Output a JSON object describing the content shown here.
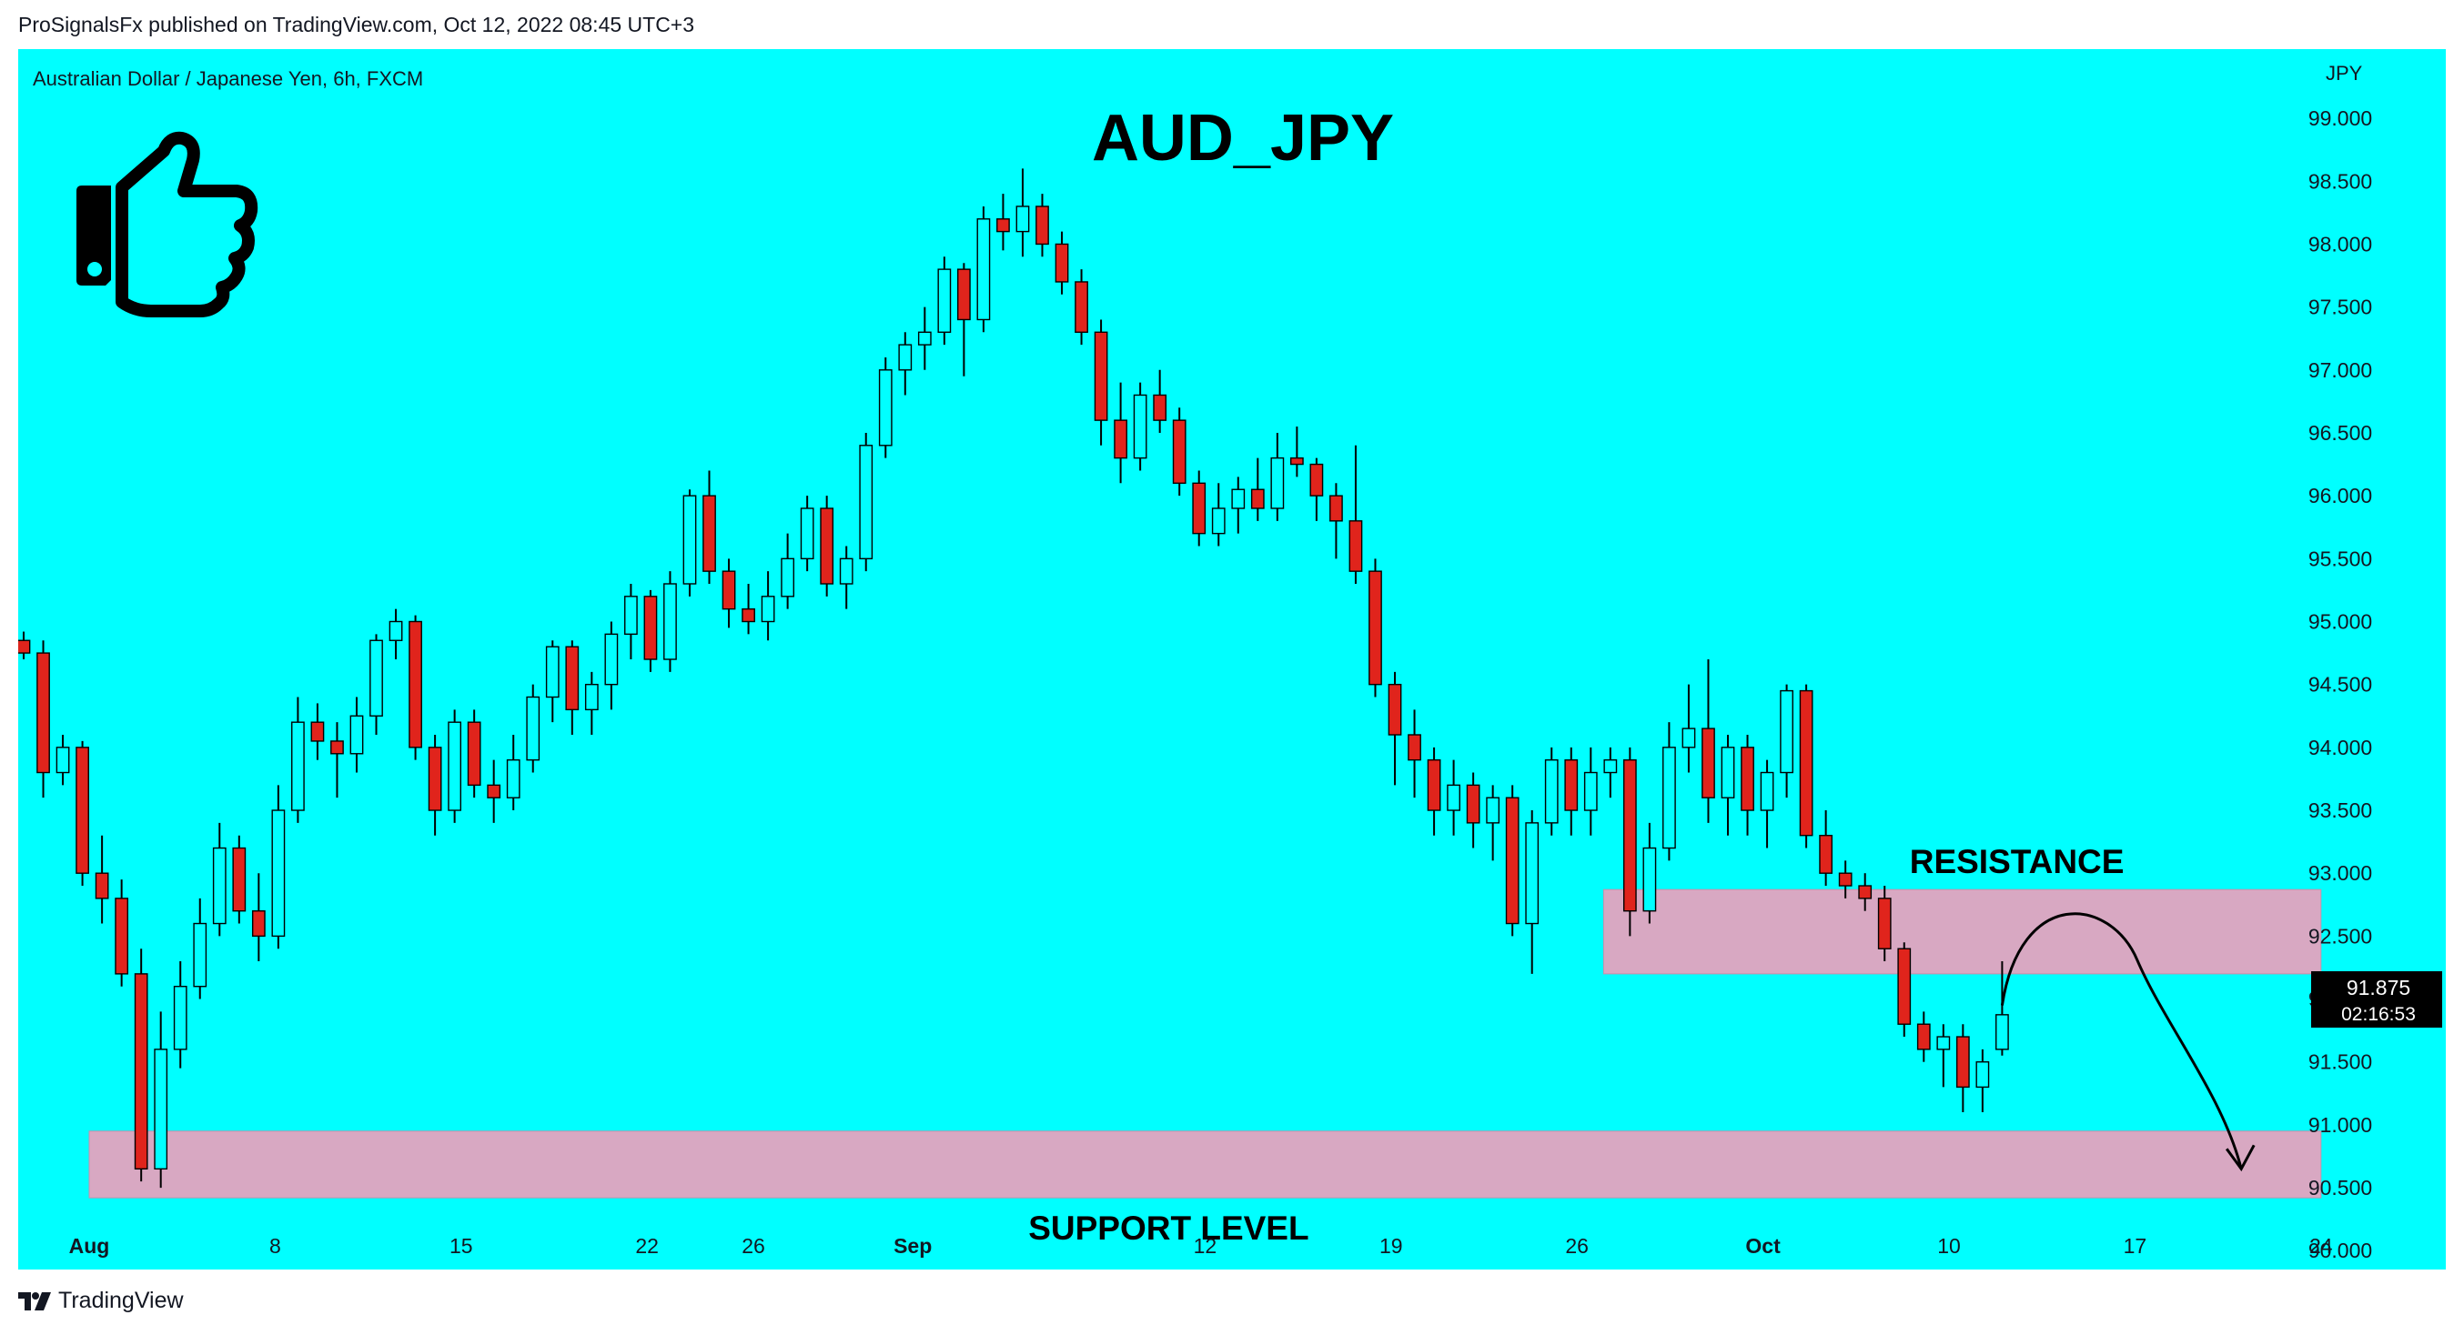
{
  "publisher_line": "ProSignalsFx published on TradingView.com, Oct 12, 2022 08:45 UTC+3",
  "footer_brand": "TradingView",
  "colors": {
    "background": "#00ffff",
    "zone": "#d8a8c2",
    "bull": "#00ffff",
    "bear": "#e0241c",
    "wick": "#000000"
  },
  "chart_data": {
    "type": "candlestick",
    "title": "AUD_JPY",
    "symbol_info": "Australian Dollar / Japanese Yen, 6h, FXCM",
    "currency_label": "JPY",
    "x_ticks": [
      {
        "label": "Aug",
        "bold": true,
        "date": "2022-08-01"
      },
      {
        "label": "8",
        "bold": false,
        "date": "2022-08-08"
      },
      {
        "label": "15",
        "bold": false,
        "date": "2022-08-15"
      },
      {
        "label": "22",
        "bold": false,
        "date": "2022-08-22"
      },
      {
        "label": "26",
        "bold": false,
        "date": "2022-08-26"
      },
      {
        "label": "Sep",
        "bold": true,
        "date": "2022-09-01"
      },
      {
        "label": "12",
        "bold": false,
        "date": "2022-09-12"
      },
      {
        "label": "19",
        "bold": false,
        "date": "2022-09-19"
      },
      {
        "label": "26",
        "bold": false,
        "date": "2022-09-26"
      },
      {
        "label": "Oct",
        "bold": true,
        "date": "2022-10-03"
      },
      {
        "label": "10",
        "bold": false,
        "date": "2022-10-10"
      },
      {
        "label": "17",
        "bold": false,
        "date": "2022-10-17"
      },
      {
        "label": "24",
        "bold": false,
        "date": "2022-10-24"
      }
    ],
    "y_ticks": [
      "99.000",
      "98.500",
      "98.000",
      "97.500",
      "97.000",
      "96.500",
      "96.000",
      "95.500",
      "95.000",
      "94.500",
      "94.000",
      "93.500",
      "93.000",
      "92.500",
      "92.000",
      "91.500",
      "91.000",
      "90.500",
      "90.000"
    ],
    "y_range": [
      89.85,
      99.55
    ],
    "price_label": {
      "price": "91.875",
      "countdown": "02:16:53"
    },
    "zones": [
      {
        "label": "RESISTANCE",
        "from_date": "2022-09-27",
        "to_date": "2022-10-24",
        "low": 92.2,
        "high": 92.87
      },
      {
        "label": "SUPPORT LEVEL",
        "from_date": "2022-08-01",
        "to_date": "2022-10-24",
        "low": 90.42,
        "high": 90.95
      }
    ],
    "projection": {
      "from": {
        "date": "2022-10-12",
        "price": 91.95
      },
      "peak": {
        "date": "2022-10-14",
        "price": 92.6
      },
      "to": {
        "date": "2022-10-21",
        "price": 90.65
      }
    },
    "candles": [
      {
        "date": "2022-07-31",
        "o": 94.85,
        "h": 94.92,
        "l": 94.7,
        "c": 94.75
      },
      {
        "date": "2022-08-01",
        "o": 94.75,
        "h": 94.85,
        "l": 93.6,
        "c": 93.8
      },
      {
        "date": "2022-08-01",
        "o": 93.8,
        "h": 94.1,
        "l": 93.7,
        "c": 94.0
      },
      {
        "date": "2022-08-02",
        "o": 94.0,
        "h": 94.05,
        "l": 92.9,
        "c": 93.0
      },
      {
        "date": "2022-08-02",
        "o": 93.0,
        "h": 93.3,
        "l": 92.6,
        "c": 92.8
      },
      {
        "date": "2022-08-03",
        "o": 92.8,
        "h": 92.95,
        "l": 92.1,
        "c": 92.2
      },
      {
        "date": "2022-08-03",
        "o": 92.2,
        "h": 92.4,
        "l": 90.55,
        "c": 90.65
      },
      {
        "date": "2022-08-04",
        "o": 90.65,
        "h": 91.9,
        "l": 90.5,
        "c": 91.6
      },
      {
        "date": "2022-08-04",
        "o": 91.6,
        "h": 92.3,
        "l": 91.45,
        "c": 92.1
      },
      {
        "date": "2022-08-05",
        "o": 92.1,
        "h": 92.8,
        "l": 92.0,
        "c": 92.6
      },
      {
        "date": "2022-08-05",
        "o": 92.6,
        "h": 93.4,
        "l": 92.5,
        "c": 93.2
      },
      {
        "date": "2022-08-06",
        "o": 93.2,
        "h": 93.3,
        "l": 92.6,
        "c": 92.7
      },
      {
        "date": "2022-08-07",
        "o": 92.7,
        "h": 93.0,
        "l": 92.3,
        "c": 92.5
      },
      {
        "date": "2022-08-08",
        "o": 92.5,
        "h": 93.7,
        "l": 92.4,
        "c": 93.5
      },
      {
        "date": "2022-08-09",
        "o": 93.5,
        "h": 94.4,
        "l": 93.4,
        "c": 94.2
      },
      {
        "date": "2022-08-10",
        "o": 94.2,
        "h": 94.35,
        "l": 93.9,
        "c": 94.05
      },
      {
        "date": "2022-08-11",
        "o": 94.05,
        "h": 94.2,
        "l": 93.6,
        "c": 93.95
      },
      {
        "date": "2022-08-12",
        "o": 93.95,
        "h": 94.4,
        "l": 93.8,
        "c": 94.25
      },
      {
        "date": "2022-08-13",
        "o": 94.25,
        "h": 94.9,
        "l": 94.1,
        "c": 94.85
      },
      {
        "date": "2022-08-14",
        "o": 94.85,
        "h": 95.1,
        "l": 94.7,
        "c": 95.0
      },
      {
        "date": "2022-08-15",
        "o": 95.0,
        "h": 95.05,
        "l": 93.9,
        "c": 94.0
      },
      {
        "date": "2022-08-16",
        "o": 94.0,
        "h": 94.1,
        "l": 93.3,
        "c": 93.5
      },
      {
        "date": "2022-08-17",
        "o": 93.5,
        "h": 94.3,
        "l": 93.4,
        "c": 94.2
      },
      {
        "date": "2022-08-18",
        "o": 94.2,
        "h": 94.3,
        "l": 93.6,
        "c": 93.7
      },
      {
        "date": "2022-08-19",
        "o": 93.7,
        "h": 93.9,
        "l": 93.4,
        "c": 93.6
      },
      {
        "date": "2022-08-20",
        "o": 93.6,
        "h": 94.1,
        "l": 93.5,
        "c": 93.9
      },
      {
        "date": "2022-08-21",
        "o": 93.9,
        "h": 94.5,
        "l": 93.8,
        "c": 94.4
      },
      {
        "date": "2022-08-22",
        "o": 94.4,
        "h": 94.85,
        "l": 94.2,
        "c": 94.8
      },
      {
        "date": "2022-08-23",
        "o": 94.8,
        "h": 94.85,
        "l": 94.1,
        "c": 94.3
      },
      {
        "date": "2022-08-24",
        "o": 94.3,
        "h": 94.6,
        "l": 94.1,
        "c": 94.5
      },
      {
        "date": "2022-08-25",
        "o": 94.5,
        "h": 95.0,
        "l": 94.3,
        "c": 94.9
      },
      {
        "date": "2022-08-26",
        "o": 94.9,
        "h": 95.3,
        "l": 94.7,
        "c": 95.2
      },
      {
        "date": "2022-08-27",
        "o": 95.2,
        "h": 95.25,
        "l": 94.6,
        "c": 94.7
      },
      {
        "date": "2022-08-28",
        "o": 94.7,
        "h": 95.4,
        "l": 94.6,
        "c": 95.3
      },
      {
        "date": "2022-08-29",
        "o": 95.3,
        "h": 96.05,
        "l": 95.2,
        "c": 96.0
      },
      {
        "date": "2022-08-30",
        "o": 96.0,
        "h": 96.2,
        "l": 95.3,
        "c": 95.4
      },
      {
        "date": "2022-08-31",
        "o": 95.4,
        "h": 95.5,
        "l": 94.95,
        "c": 95.1
      },
      {
        "date": "2022-09-01",
        "o": 95.1,
        "h": 95.3,
        "l": 94.9,
        "c": 95.0
      },
      {
        "date": "2022-09-02",
        "o": 95.0,
        "h": 95.4,
        "l": 94.85,
        "c": 95.2
      },
      {
        "date": "2022-09-03",
        "o": 95.2,
        "h": 95.7,
        "l": 95.1,
        "c": 95.5
      },
      {
        "date": "2022-09-04",
        "o": 95.5,
        "h": 96.0,
        "l": 95.4,
        "c": 95.9
      },
      {
        "date": "2022-09-05",
        "o": 95.9,
        "h": 96.0,
        "l": 95.2,
        "c": 95.3
      },
      {
        "date": "2022-09-06",
        "o": 95.3,
        "h": 95.6,
        "l": 95.1,
        "c": 95.5
      },
      {
        "date": "2022-09-07",
        "o": 95.5,
        "h": 96.5,
        "l": 95.4,
        "c": 96.4
      },
      {
        "date": "2022-09-08",
        "o": 96.4,
        "h": 97.1,
        "l": 96.3,
        "c": 97.0
      },
      {
        "date": "2022-09-09",
        "o": 97.0,
        "h": 97.3,
        "l": 96.8,
        "c": 97.2
      },
      {
        "date": "2022-09-10",
        "o": 97.2,
        "h": 97.5,
        "l": 97.0,
        "c": 97.3
      },
      {
        "date": "2022-09-11",
        "o": 97.3,
        "h": 97.9,
        "l": 97.2,
        "c": 97.8
      },
      {
        "date": "2022-09-12",
        "o": 97.8,
        "h": 97.85,
        "l": 96.95,
        "c": 97.4
      },
      {
        "date": "2022-09-12",
        "o": 97.4,
        "h": 98.3,
        "l": 97.3,
        "c": 98.2
      },
      {
        "date": "2022-09-13",
        "o": 98.2,
        "h": 98.4,
        "l": 97.95,
        "c": 98.1
      },
      {
        "date": "2022-09-13",
        "o": 98.1,
        "h": 98.6,
        "l": 97.9,
        "c": 98.3
      },
      {
        "date": "2022-09-14",
        "o": 98.3,
        "h": 98.4,
        "l": 97.9,
        "c": 98.0
      },
      {
        "date": "2022-09-14",
        "o": 98.0,
        "h": 98.1,
        "l": 97.6,
        "c": 97.7
      },
      {
        "date": "2022-09-15",
        "o": 97.7,
        "h": 97.8,
        "l": 97.2,
        "c": 97.3
      },
      {
        "date": "2022-09-15",
        "o": 97.3,
        "h": 97.4,
        "l": 96.4,
        "c": 96.6
      },
      {
        "date": "2022-09-16",
        "o": 96.6,
        "h": 96.9,
        "l": 96.1,
        "c": 96.3
      },
      {
        "date": "2022-09-16",
        "o": 96.3,
        "h": 96.9,
        "l": 96.2,
        "c": 96.8
      },
      {
        "date": "2022-09-17",
        "o": 96.8,
        "h": 97.0,
        "l": 96.5,
        "c": 96.6
      },
      {
        "date": "2022-09-18",
        "o": 96.6,
        "h": 96.7,
        "l": 96.0,
        "c": 96.1
      },
      {
        "date": "2022-09-19",
        "o": 96.1,
        "h": 96.2,
        "l": 95.6,
        "c": 95.7
      },
      {
        "date": "2022-09-19",
        "o": 95.7,
        "h": 96.1,
        "l": 95.6,
        "c": 95.9
      },
      {
        "date": "2022-09-20",
        "o": 95.9,
        "h": 96.15,
        "l": 95.7,
        "c": 96.05
      },
      {
        "date": "2022-09-20",
        "o": 96.05,
        "h": 96.3,
        "l": 95.8,
        "c": 95.9
      },
      {
        "date": "2022-09-21",
        "o": 95.9,
        "h": 96.5,
        "l": 95.8,
        "c": 96.3
      },
      {
        "date": "2022-09-21",
        "o": 96.3,
        "h": 96.55,
        "l": 96.15,
        "c": 96.25
      },
      {
        "date": "2022-09-22",
        "o": 96.25,
        "h": 96.3,
        "l": 95.8,
        "c": 96.0
      },
      {
        "date": "2022-09-22",
        "o": 96.0,
        "h": 96.1,
        "l": 95.5,
        "c": 95.8
      },
      {
        "date": "2022-09-23",
        "o": 95.8,
        "h": 96.4,
        "l": 95.3,
        "c": 95.4
      },
      {
        "date": "2022-09-23",
        "o": 95.4,
        "h": 95.5,
        "l": 94.4,
        "c": 94.5
      },
      {
        "date": "2022-09-24",
        "o": 94.5,
        "h": 94.6,
        "l": 93.7,
        "c": 94.1
      },
      {
        "date": "2022-09-25",
        "o": 94.1,
        "h": 94.3,
        "l": 93.6,
        "c": 93.9
      },
      {
        "date": "2022-09-26",
        "o": 93.9,
        "h": 94.0,
        "l": 93.3,
        "c": 93.5
      },
      {
        "date": "2022-09-26",
        "o": 93.5,
        "h": 93.9,
        "l": 93.3,
        "c": 93.7
      },
      {
        "date": "2022-09-27",
        "o": 93.7,
        "h": 93.8,
        "l": 93.2,
        "c": 93.4
      },
      {
        "date": "2022-09-27",
        "o": 93.4,
        "h": 93.7,
        "l": 93.1,
        "c": 93.6
      },
      {
        "date": "2022-09-28",
        "o": 93.6,
        "h": 93.7,
        "l": 92.5,
        "c": 92.6
      },
      {
        "date": "2022-09-28",
        "o": 92.6,
        "h": 93.5,
        "l": 92.2,
        "c": 93.4
      },
      {
        "date": "2022-09-29",
        "o": 93.4,
        "h": 94.0,
        "l": 93.3,
        "c": 93.9
      },
      {
        "date": "2022-09-29",
        "o": 93.9,
        "h": 94.0,
        "l": 93.3,
        "c": 93.5
      },
      {
        "date": "2022-09-30",
        "o": 93.5,
        "h": 94.0,
        "l": 93.3,
        "c": 93.8
      },
      {
        "date": "2022-09-30",
        "o": 93.8,
        "h": 94.0,
        "l": 93.6,
        "c": 93.9
      },
      {
        "date": "2022-10-01",
        "o": 93.9,
        "h": 94.0,
        "l": 92.5,
        "c": 92.7
      },
      {
        "date": "2022-10-02",
        "o": 92.7,
        "h": 93.4,
        "l": 92.6,
        "c": 93.2
      },
      {
        "date": "2022-10-03",
        "o": 93.2,
        "h": 94.2,
        "l": 93.1,
        "c": 94.0
      },
      {
        "date": "2022-10-03",
        "o": 94.0,
        "h": 94.5,
        "l": 93.8,
        "c": 94.15
      },
      {
        "date": "2022-10-04",
        "o": 94.15,
        "h": 94.7,
        "l": 93.4,
        "c": 93.6
      },
      {
        "date": "2022-10-04",
        "o": 93.6,
        "h": 94.1,
        "l": 93.3,
        "c": 94.0
      },
      {
        "date": "2022-10-05",
        "o": 94.0,
        "h": 94.1,
        "l": 93.3,
        "c": 93.5
      },
      {
        "date": "2022-10-05",
        "o": 93.5,
        "h": 93.9,
        "l": 93.2,
        "c": 93.8
      },
      {
        "date": "2022-10-06",
        "o": 93.8,
        "h": 94.5,
        "l": 93.6,
        "c": 94.45
      },
      {
        "date": "2022-10-06",
        "o": 94.45,
        "h": 94.5,
        "l": 93.2,
        "c": 93.3
      },
      {
        "date": "2022-10-07",
        "o": 93.3,
        "h": 93.5,
        "l": 92.9,
        "c": 93.0
      },
      {
        "date": "2022-10-07",
        "o": 93.0,
        "h": 93.1,
        "l": 92.8,
        "c": 92.9
      },
      {
        "date": "2022-10-08",
        "o": 92.9,
        "h": 93.0,
        "l": 92.7,
        "c": 92.8
      },
      {
        "date": "2022-10-09",
        "o": 92.8,
        "h": 92.9,
        "l": 92.3,
        "c": 92.4
      },
      {
        "date": "2022-10-10",
        "o": 92.4,
        "h": 92.45,
        "l": 91.7,
        "c": 91.8
      },
      {
        "date": "2022-10-10",
        "o": 91.8,
        "h": 91.9,
        "l": 91.5,
        "c": 91.6
      },
      {
        "date": "2022-10-11",
        "o": 91.6,
        "h": 91.8,
        "l": 91.3,
        "c": 91.7
      },
      {
        "date": "2022-10-11",
        "o": 91.7,
        "h": 91.8,
        "l": 91.1,
        "c": 91.3
      },
      {
        "date": "2022-10-12",
        "o": 91.3,
        "h": 91.6,
        "l": 91.1,
        "c": 91.5
      },
      {
        "date": "2022-10-12",
        "o": 91.6,
        "h": 92.3,
        "l": 91.55,
        "c": 91.875
      }
    ]
  }
}
